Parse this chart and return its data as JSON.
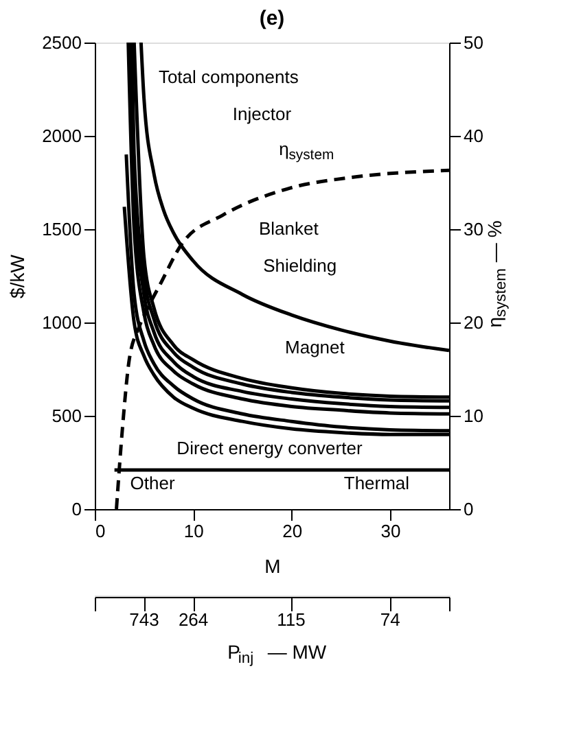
{
  "chart_data": {
    "type": "line",
    "title": "(e)",
    "xlabel": "M",
    "ylabel": "$/kW",
    "y2label": "η$_{system}$ — %",
    "xlim": [
      0,
      36
    ],
    "xticks": [
      0,
      10,
      20,
      30
    ],
    "ylim": [
      0,
      2500
    ],
    "yticks": [
      0,
      500,
      1000,
      1500,
      2000,
      2500
    ],
    "y2lim": [
      0,
      50
    ],
    "y2ticks": [
      0,
      10,
      20,
      30,
      40,
      50
    ],
    "grid": false,
    "marker": "none",
    "series": [
      {
        "color": "#000000",
        "x": [
          4.7,
          5,
          6,
          7,
          8,
          10,
          15,
          20,
          25,
          30,
          36
        ],
        "values": [
          2500,
          2200,
          1800,
          1600,
          1480,
          1330,
          1150,
          1040,
          960,
          900,
          850
        ]
      },
      {
        "color": "#000000",
        "x": [
          4.0,
          5,
          6,
          8,
          10,
          15,
          20,
          25,
          30,
          36
        ],
        "values": [
          2500,
          1350,
          1080,
          880,
          800,
          700,
          650,
          620,
          605,
          600
        ]
      },
      {
        "color": "#000000",
        "x": [
          3.8,
          4,
          5,
          6,
          8,
          10,
          15,
          20,
          25,
          30,
          36
        ],
        "values": [
          2500,
          1900,
          1250,
          1020,
          840,
          760,
          670,
          625,
          600,
          585,
          580
        ]
      },
      {
        "color": "#000000",
        "x": [
          3.6,
          4,
          5,
          6,
          8,
          10,
          15,
          20,
          25,
          30,
          36
        ],
        "values": [
          2500,
          1700,
          1150,
          950,
          790,
          710,
          630,
          590,
          565,
          550,
          545
        ]
      },
      {
        "color": "#000000",
        "x": [
          3.4,
          4,
          5,
          6,
          8,
          10,
          15,
          20,
          25,
          30,
          36
        ],
        "values": [
          2500,
          1500,
          1050,
          880,
          740,
          670,
          590,
          550,
          530,
          515,
          510
        ]
      },
      {
        "color": "#000000",
        "x": [
          3.2,
          4,
          5,
          6,
          8,
          10,
          15,
          20,
          25,
          30,
          36
        ],
        "values": [
          1900,
          1150,
          900,
          780,
          660,
          590,
          510,
          470,
          440,
          425,
          420
        ]
      },
      {
        "color": "#000000",
        "x": [
          3.0,
          4,
          5,
          6,
          8,
          10,
          15,
          20,
          25,
          30,
          36
        ],
        "values": [
          1620,
          1000,
          820,
          720,
          600,
          540,
          470,
          430,
          410,
          400,
          400
        ]
      },
      {
        "color": "#000000",
        "x": [
          2,
          36
        ],
        "values": [
          210,
          210
        ]
      },
      {
        "color": "#000000",
        "axis": "y2",
        "line_style": "dashed",
        "x": [
          2.2,
          2.8,
          3.5,
          4.5,
          5.6,
          6.6,
          8.9,
          13,
          19.5,
          26.5,
          36
        ],
        "values": [
          0,
          8.5,
          16,
          19.5,
          22,
          24,
          28.5,
          31.5,
          34.3,
          35.6,
          36.3
        ]
      }
    ],
    "annotations": [
      "Total components",
      "Injector",
      "η$_{system}$",
      "Blanket",
      "Shielding",
      "Magnet",
      "Direct energy converter",
      "Other",
      "Thermal",
      "743",
      "264",
      "115",
      "74",
      "P$_{inj}$ — MW"
    ]
  }
}
